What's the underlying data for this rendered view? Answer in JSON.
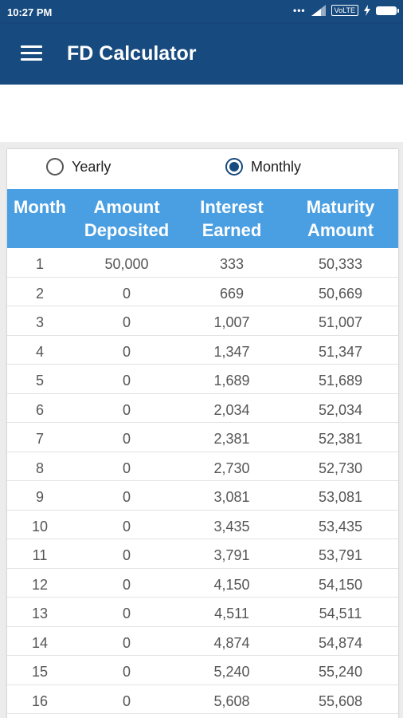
{
  "status_bar": {
    "time": "10:27 PM",
    "network": "VoLTE"
  },
  "app_bar": {
    "title": "FD Calculator",
    "menu_icon": "hamburger-menu-icon"
  },
  "options": {
    "yearly_label": "Yearly",
    "monthly_label": "Monthly",
    "selected": "Monthly"
  },
  "table": {
    "headers": [
      {
        "line1": "Month",
        "line2": ""
      },
      {
        "line1": "Amount",
        "line2": "Deposited"
      },
      {
        "line1": "Interest",
        "line2": "Earned"
      },
      {
        "line1": "Maturity",
        "line2": "Amount"
      }
    ],
    "rows": [
      [
        "1",
        "50,000",
        "333",
        "50,333"
      ],
      [
        "2",
        "0",
        "669",
        "50,669"
      ],
      [
        "3",
        "0",
        "1,007",
        "51,007"
      ],
      [
        "4",
        "0",
        "1,347",
        "51,347"
      ],
      [
        "5",
        "0",
        "1,689",
        "51,689"
      ],
      [
        "6",
        "0",
        "2,034",
        "52,034"
      ],
      [
        "7",
        "0",
        "2,381",
        "52,381"
      ],
      [
        "8",
        "0",
        "2,730",
        "52,730"
      ],
      [
        "9",
        "0",
        "3,081",
        "53,081"
      ],
      [
        "10",
        "0",
        "3,435",
        "53,435"
      ],
      [
        "11",
        "0",
        "3,791",
        "53,791"
      ],
      [
        "12",
        "0",
        "4,150",
        "54,150"
      ],
      [
        "13",
        "0",
        "4,511",
        "54,511"
      ],
      [
        "14",
        "0",
        "4,874",
        "54,874"
      ],
      [
        "15",
        "0",
        "5,240",
        "55,240"
      ],
      [
        "16",
        "0",
        "5,608",
        "55,608"
      ]
    ]
  },
  "colors": {
    "app_bar": "#174a7e",
    "table_header": "#4a9fe2",
    "radio_selected": "#174a7e"
  }
}
